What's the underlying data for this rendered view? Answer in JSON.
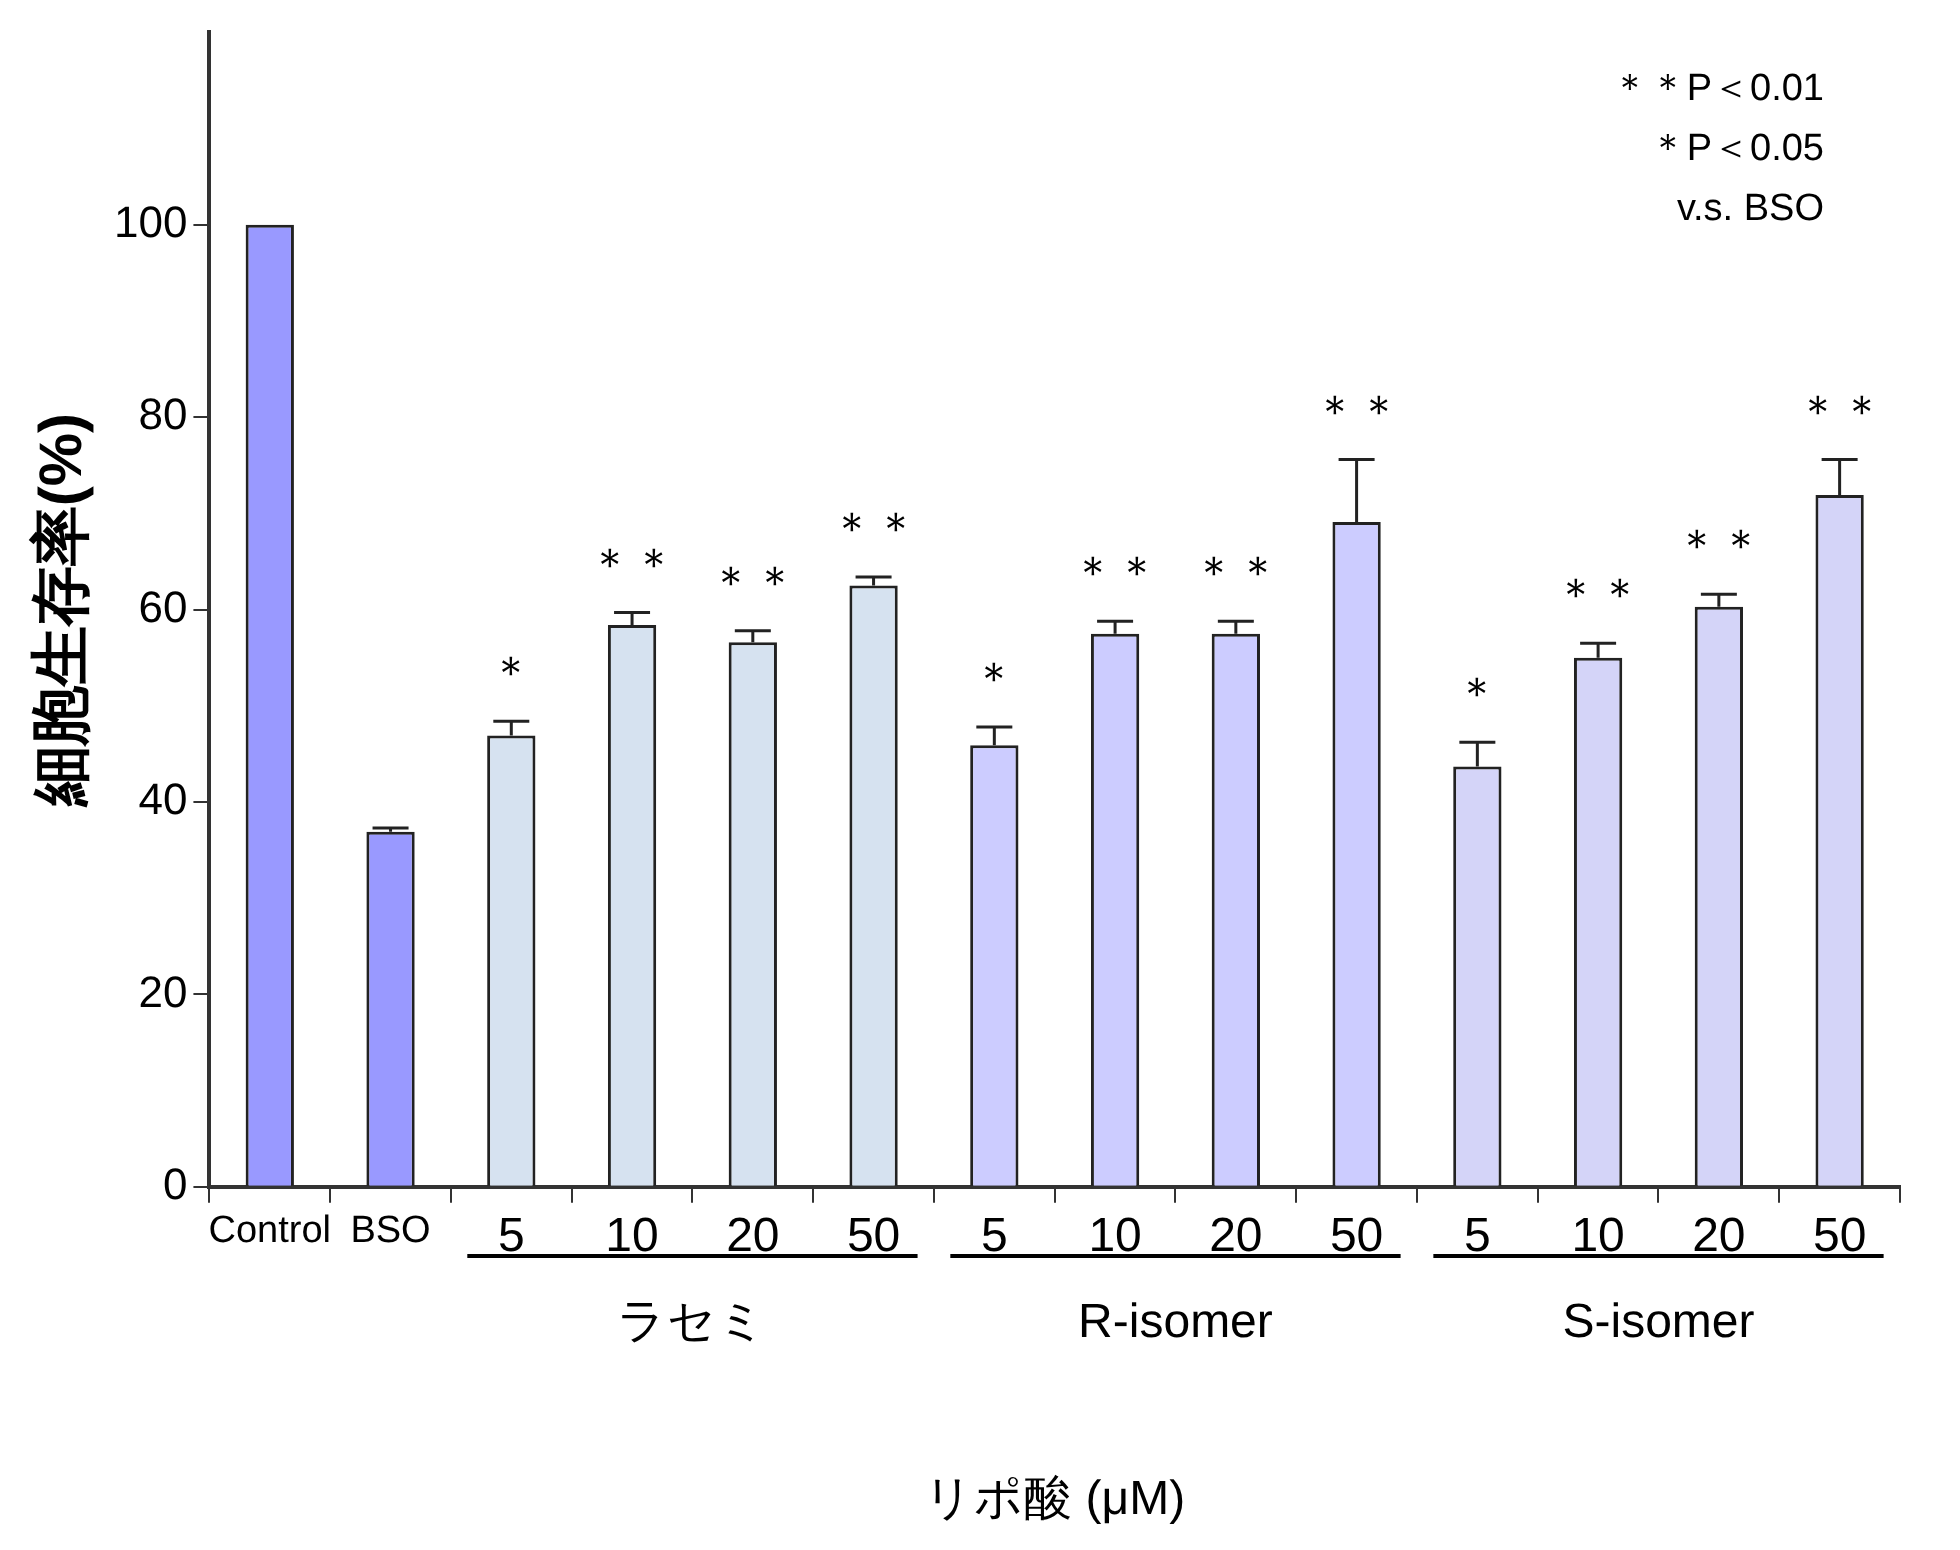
{
  "chart_data": {
    "type": "bar",
    "ylabel": "細胞生存率(%)",
    "xlabel": "リポ酸 (μM)",
    "categories": [
      "Control",
      "BSO",
      "5",
      "10",
      "20",
      "50",
      "5",
      "10",
      "20",
      "50",
      "5",
      "10",
      "20",
      "50"
    ],
    "values": [
      100,
      36.9,
      46.9,
      58.4,
      56.6,
      62.5,
      45.9,
      57.5,
      57.5,
      69.1,
      43.7,
      55.0,
      60.3,
      71.9
    ],
    "errors": [
      null,
      0.4,
      1.5,
      1.3,
      1.2,
      0.9,
      1.9,
      1.3,
      1.3,
      6.5,
      2.5,
      1.5,
      1.3,
      3.7
    ],
    "value_labels": [
      null,
      null,
      "＊",
      "＊＊",
      "＊＊",
      "＊＊",
      "＊",
      "＊＊",
      "＊＊",
      "＊＊",
      "＊",
      "＊＊",
      "＊＊",
      "＊＊"
    ],
    "colors": [
      "#9999ff",
      "#9999ff",
      "#d6e2f0",
      "#d6e2f0",
      "#d6e2f0",
      "#d6e2f0",
      "#ccccff",
      "#ccccff",
      "#ccccff",
      "#ccccff",
      "#d4d4f8",
      "#d4d4f8",
      "#d4d4f8",
      "#d4d4f8"
    ],
    "ylim": [
      0,
      120
    ],
    "yticks": [
      0,
      20,
      40,
      60,
      80,
      100
    ],
    "grid": false,
    "legend": false,
    "annotations": [
      "＊＊P＜0.01",
      "＊P＜0.05",
      "v.s. BSO",
      "ラセミ",
      "R-isomer",
      "S-isomer"
    ]
  }
}
